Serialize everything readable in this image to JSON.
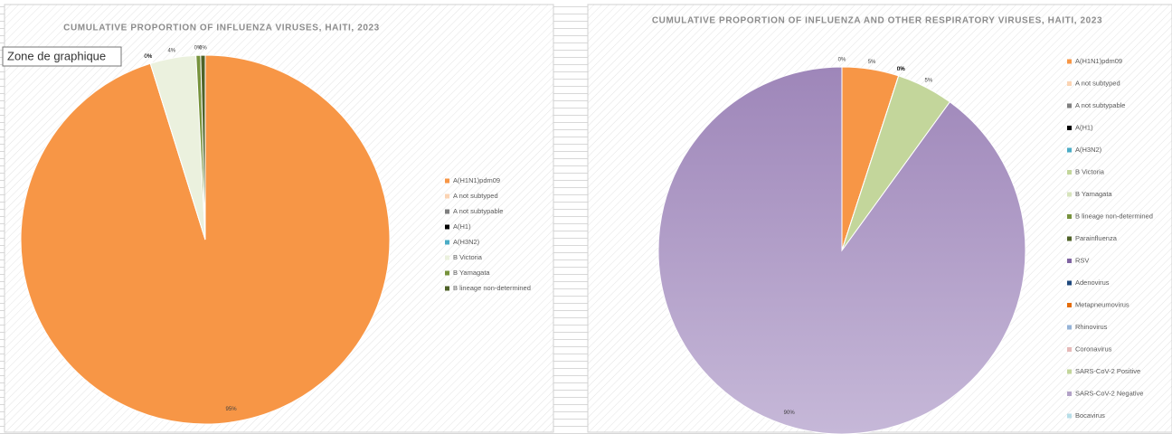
{
  "tooltip": "Zone de graphique",
  "chart_data": [
    {
      "type": "pie",
      "title": "CUMULATIVE PROPORTION OF INFLUENZA VIRUSES,  HAITI, 2023",
      "categories": [
        "A(H1N1)pdm09",
        "A not subtyped",
        "A not subtypable",
        "A(H1)",
        "A(H3N2)",
        "B Victoria",
        "B Yamagata",
        "B lineage non-determined"
      ],
      "values": [
        95,
        0,
        0,
        0,
        0,
        4,
        0.4,
        0.4
      ],
      "value_labels": [
        "95%",
        "0%",
        "0%",
        "0%",
        "0%",
        "4%",
        "0%",
        "0%"
      ],
      "colors": [
        "#f79646",
        "#fbd4b4",
        "#7f7f7f",
        "#000000",
        "#4bacc6",
        "#ebf1de",
        "#77933c",
        "#4f6228"
      ]
    },
    {
      "type": "pie",
      "title": "CUMULATIVE PROPORTION OF INFLUENZA AND OTHER RESPIRATORY VIRUSES,  HAITI, 2023",
      "categories": [
        "A(H1N1)pdm09",
        "A not subtyped",
        "A not subtypable",
        "A(H1)",
        "A(H3N2)",
        "B Victoria",
        "B Yamagata",
        "B lineage non-determined",
        "Parainfluenza",
        "RSV",
        "Adenovirus",
        "Metapneumovirus",
        "Rhinovirus",
        "Coronavirus",
        "SARS-CoV-2 Positive",
        "SARS-CoV-2 Negative",
        "Bocavirus"
      ],
      "values": [
        5,
        0,
        0,
        0,
        0,
        0,
        0,
        0,
        0,
        0,
        0,
        0,
        0,
        0,
        5,
        90,
        0
      ],
      "value_labels": [
        "5%",
        "0%",
        "0%",
        "0%",
        "0%",
        "0%",
        "0%",
        "0%",
        "0%",
        "0%",
        "0%",
        "0%",
        "0%",
        "0%",
        "5%",
        "90%",
        "0%"
      ],
      "colors": [
        "#f79646",
        "#fbd4b4",
        "#7f7f7f",
        "#000000",
        "#4bacc6",
        "#c3d69b",
        "#d7e4bd",
        "#76923c",
        "#4f6228",
        "#8064a2",
        "#1f497d",
        "#e46c0a",
        "#95b3d7",
        "#e6b9b8",
        "#c3d69b",
        "#b3a2c7",
        "#b7dee8"
      ]
    }
  ]
}
